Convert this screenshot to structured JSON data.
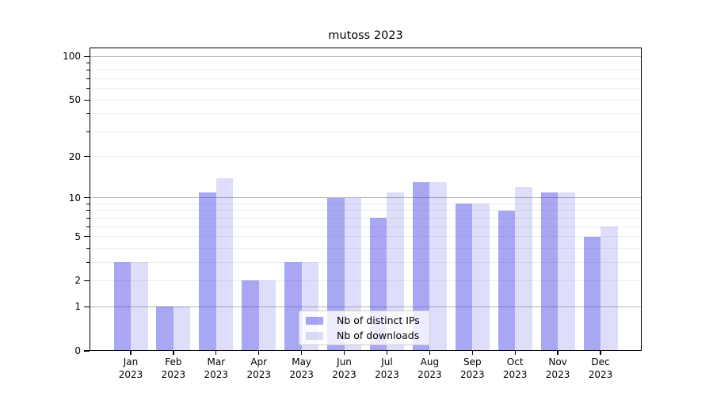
{
  "title": "mutoss 2023",
  "legend": {
    "ips": "Nb of distinct IPs",
    "downloads": "Nb of downloads"
  },
  "colors": {
    "ips_bar": "rgba(60,60,230,0.45)",
    "downloads_bar": "rgba(60,60,230,0.17)",
    "major_grid": "#b5b5b5",
    "minor_grid": "#ededed",
    "axis": "#000000"
  },
  "chart_data": {
    "type": "bar",
    "title": "mutoss 2023",
    "categories": [
      "Jan 2023",
      "Feb 2023",
      "Mar 2023",
      "Apr 2023",
      "May 2023",
      "Jun 2023",
      "Jul 2023",
      "Aug 2023",
      "Sep 2023",
      "Oct 2023",
      "Nov 2023",
      "Dec 2023"
    ],
    "series": [
      {
        "name": "Nb of distinct IPs",
        "values": [
          3,
          1,
          11,
          2,
          3,
          10,
          7,
          13,
          9,
          8,
          11,
          5
        ]
      },
      {
        "name": "Nb of downloads",
        "values": [
          3,
          1,
          14,
          2,
          3,
          10,
          11,
          13,
          9,
          12,
          11,
          6
        ]
      }
    ],
    "yscale": "log1p",
    "ylim": [
      0,
      115
    ],
    "yticks": [
      0,
      1,
      2,
      5,
      10,
      20,
      50,
      100
    ],
    "minor_ticks": [
      3,
      4,
      6,
      7,
      8,
      9,
      30,
      40,
      60,
      70,
      80,
      90
    ],
    "major_gridlines": [
      1,
      10,
      100
    ],
    "minor_gridlines": [
      2,
      3,
      4,
      5,
      6,
      7,
      8,
      9,
      20,
      30,
      40,
      50,
      60,
      70,
      80,
      90
    ],
    "grid": "on",
    "legend_position": "lower center",
    "xlabel": "",
    "ylabel": ""
  }
}
